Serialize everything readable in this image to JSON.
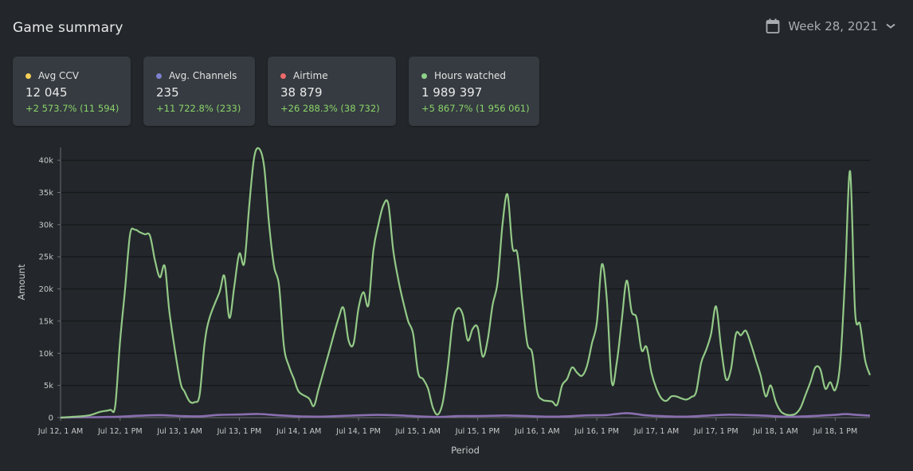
{
  "header": {
    "title": "Game summary",
    "week_label": "Week 28, 2021"
  },
  "cards": [
    {
      "label": "Avg CCV",
      "value": "12 045",
      "change": "+2 573.7% (11 594)",
      "color": "#f4cf57"
    },
    {
      "label": "Avg. Channels",
      "value": "235",
      "change": "+11 722.8% (233)",
      "color": "#7f80d0"
    },
    {
      "label": "Airtime",
      "value": "38 879",
      "change": "+26 288.3% (38 732)",
      "color": "#ee6a6a"
    },
    {
      "label": "Hours watched",
      "value": "1 989 397",
      "change": "+5 867.7% (1 956 061)",
      "color": "#8fd18a"
    }
  ],
  "colors": {
    "background": "#23272b",
    "card": "#353b40",
    "hours_line": "#93c987",
    "channels_line": "#8a6fb0",
    "positive_change": "#8bd36a"
  },
  "chart_data": {
    "type": "line",
    "xlabel": "Period",
    "ylabel": "Amount",
    "ylim": [
      0,
      42000
    ],
    "yticks": [
      0,
      5000,
      10000,
      15000,
      20000,
      25000,
      30000,
      35000,
      40000
    ],
    "ytick_labels": [
      "0",
      "5k",
      "10k",
      "15k",
      "20k",
      "25k",
      "30k",
      "35k",
      "40k"
    ],
    "xlim": [
      0,
      163
    ],
    "xticks": [
      0,
      12,
      24,
      36,
      48,
      60,
      72,
      84,
      96,
      108,
      120,
      132,
      144,
      156
    ],
    "xtick_labels": [
      "Jul 12, 1 AM",
      "Jul 12, 1 PM",
      "Jul 13, 1 AM",
      "Jul 13, 1 PM",
      "Jul 14, 1 AM",
      "Jul 14, 1 PM",
      "Jul 15, 1 AM",
      "Jul 15, 1 PM",
      "Jul 16, 1 AM",
      "Jul 16, 1 PM",
      "Jul 17, 1 AM",
      "Jul 17, 1 PM",
      "Jul 18, 1 AM",
      "Jul 18, 1 PM"
    ],
    "grid": true,
    "series": [
      {
        "color": "#93c987",
        "points": [
          [
            0,
            0
          ],
          [
            2,
            100
          ],
          [
            4,
            200
          ],
          [
            6,
            400
          ],
          [
            8,
            900
          ],
          [
            10,
            1200
          ],
          [
            11,
            1800
          ],
          [
            12,
            12000
          ],
          [
            13,
            20000
          ],
          [
            14,
            28500
          ],
          [
            15,
            29200
          ],
          [
            16,
            28800
          ],
          [
            17,
            28500
          ],
          [
            18,
            28300
          ],
          [
            19,
            24500
          ],
          [
            20,
            21800
          ],
          [
            21,
            23500
          ],
          [
            22,
            16000
          ],
          [
            24,
            6000
          ],
          [
            25,
            4000
          ],
          [
            26,
            2500
          ],
          [
            27,
            2400
          ],
          [
            28,
            3500
          ],
          [
            29,
            11500
          ],
          [
            30,
            15500
          ],
          [
            32,
            19500
          ],
          [
            33,
            22000
          ],
          [
            34,
            15500
          ],
          [
            35,
            20500
          ],
          [
            36,
            25500
          ],
          [
            37,
            24000
          ],
          [
            38,
            33000
          ],
          [
            39,
            40500
          ],
          [
            40,
            41800
          ],
          [
            41,
            39000
          ],
          [
            42,
            30000
          ],
          [
            43,
            23500
          ],
          [
            44,
            20500
          ],
          [
            45,
            11000
          ],
          [
            46,
            8000
          ],
          [
            47,
            6000
          ],
          [
            48,
            4000
          ],
          [
            50,
            3000
          ],
          [
            51,
            1800
          ],
          [
            52,
            4500
          ],
          [
            54,
            10000
          ],
          [
            56,
            15500
          ],
          [
            57,
            17000
          ],
          [
            58,
            12000
          ],
          [
            59,
            11500
          ],
          [
            60,
            17000
          ],
          [
            61,
            19500
          ],
          [
            62,
            17500
          ],
          [
            63,
            26000
          ],
          [
            64,
            30000
          ],
          [
            65,
            33000
          ],
          [
            66,
            33200
          ],
          [
            67,
            26000
          ],
          [
            68,
            21500
          ],
          [
            69,
            18000
          ],
          [
            70,
            15000
          ],
          [
            71,
            13000
          ],
          [
            72,
            7000
          ],
          [
            73,
            6000
          ],
          [
            74,
            4500
          ],
          [
            75,
            1500
          ],
          [
            76,
            500
          ],
          [
            77,
            2500
          ],
          [
            78,
            8000
          ],
          [
            79,
            15000
          ],
          [
            80,
            17000
          ],
          [
            81,
            16000
          ],
          [
            82,
            12000
          ],
          [
            83,
            13800
          ],
          [
            84,
            14000
          ],
          [
            85,
            9500
          ],
          [
            86,
            12000
          ],
          [
            87,
            17500
          ],
          [
            88,
            21000
          ],
          [
            89,
            30000
          ],
          [
            90,
            34700
          ],
          [
            91,
            26500
          ],
          [
            92,
            25500
          ],
          [
            93,
            18000
          ],
          [
            94,
            11500
          ],
          [
            95,
            10000
          ],
          [
            96,
            4000
          ],
          [
            97,
            2800
          ],
          [
            98,
            2600
          ],
          [
            99,
            2500
          ],
          [
            100,
            2000
          ],
          [
            101,
            5000
          ],
          [
            102,
            6000
          ],
          [
            103,
            7800
          ],
          [
            104,
            7000
          ],
          [
            105,
            6500
          ],
          [
            106,
            8000
          ],
          [
            107,
            11500
          ],
          [
            108,
            14800
          ],
          [
            109,
            23800
          ],
          [
            110,
            18500
          ],
          [
            111,
            5500
          ],
          [
            112,
            8500
          ],
          [
            113,
            15000
          ],
          [
            114,
            21300
          ],
          [
            115,
            16500
          ],
          [
            116,
            15500
          ],
          [
            117,
            10500
          ],
          [
            118,
            11000
          ],
          [
            119,
            7000
          ],
          [
            120,
            4500
          ],
          [
            121,
            3000
          ],
          [
            122,
            2600
          ],
          [
            123,
            3300
          ],
          [
            124,
            3300
          ],
          [
            125,
            3000
          ],
          [
            126,
            2800
          ],
          [
            127,
            3200
          ],
          [
            128,
            4000
          ],
          [
            129,
            8500
          ],
          [
            130,
            10500
          ],
          [
            131,
            13000
          ],
          [
            132,
            17300
          ],
          [
            133,
            11000
          ],
          [
            134,
            6000
          ],
          [
            135,
            7500
          ],
          [
            136,
            13000
          ],
          [
            137,
            12800
          ],
          [
            138,
            13500
          ],
          [
            139,
            11500
          ],
          [
            140,
            9000
          ],
          [
            141,
            6500
          ],
          [
            142,
            3300
          ],
          [
            143,
            5000
          ],
          [
            144,
            2500
          ],
          [
            145,
            1000
          ],
          [
            146,
            500
          ],
          [
            147,
            400
          ],
          [
            148,
            600
          ],
          [
            149,
            1500
          ],
          [
            150,
            3500
          ],
          [
            151,
            5500
          ],
          [
            152,
            7800
          ],
          [
            153,
            7500
          ],
          [
            154,
            4500
          ],
          [
            155,
            5500
          ],
          [
            156,
            4300
          ],
          [
            157,
            8500
          ],
          [
            158,
            22000
          ],
          [
            159,
            38300
          ],
          [
            160,
            16500
          ],
          [
            161,
            14500
          ],
          [
            162,
            9000
          ],
          [
            163,
            6600
          ]
        ]
      },
      {
        "color": "#8a6fb0",
        "points": [
          [
            0,
            0
          ],
          [
            4,
            50
          ],
          [
            8,
            80
          ],
          [
            12,
            150
          ],
          [
            16,
            300
          ],
          [
            20,
            380
          ],
          [
            24,
            250
          ],
          [
            28,
            200
          ],
          [
            32,
            420
          ],
          [
            36,
            480
          ],
          [
            40,
            560
          ],
          [
            44,
            350
          ],
          [
            48,
            200
          ],
          [
            52,
            150
          ],
          [
            56,
            250
          ],
          [
            60,
            350
          ],
          [
            64,
            420
          ],
          [
            68,
            350
          ],
          [
            72,
            200
          ],
          [
            76,
            100
          ],
          [
            80,
            230
          ],
          [
            84,
            250
          ],
          [
            88,
            300
          ],
          [
            90,
            320
          ],
          [
            94,
            250
          ],
          [
            98,
            150
          ],
          [
            102,
            200
          ],
          [
            106,
            350
          ],
          [
            110,
            400
          ],
          [
            114,
            700
          ],
          [
            118,
            350
          ],
          [
            122,
            200
          ],
          [
            126,
            150
          ],
          [
            130,
            300
          ],
          [
            134,
            450
          ],
          [
            138,
            400
          ],
          [
            142,
            300
          ],
          [
            146,
            150
          ],
          [
            150,
            200
          ],
          [
            154,
            350
          ],
          [
            156,
            420
          ],
          [
            158,
            550
          ],
          [
            160,
            450
          ],
          [
            163,
            300
          ]
        ]
      }
    ]
  }
}
